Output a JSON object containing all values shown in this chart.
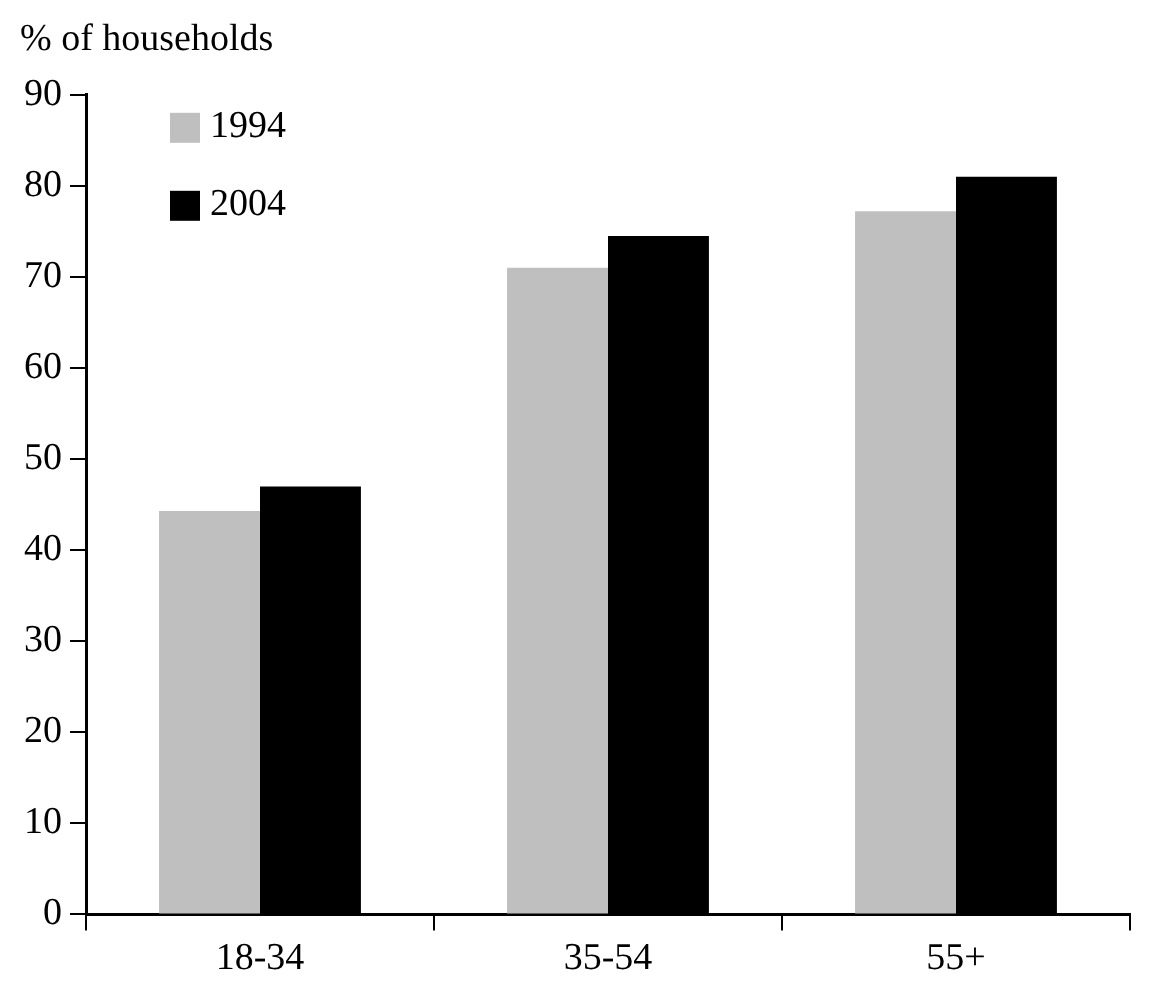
{
  "chart_data": {
    "type": "bar",
    "ylabel": "% of households",
    "categories": [
      "18-34",
      "35-54",
      "55+"
    ],
    "series": [
      {
        "name": "1994",
        "color": "#bfbfbf",
        "values": [
          44.3,
          71,
          77.2
        ]
      },
      {
        "name": "2004",
        "color": "#000000",
        "values": [
          47,
          74.5,
          81
        ]
      }
    ],
    "ylim": [
      0,
      90
    ],
    "yticks": [
      0,
      10,
      20,
      30,
      40,
      50,
      60,
      70,
      80,
      90
    ],
    "grid": false,
    "legend": "top left"
  }
}
